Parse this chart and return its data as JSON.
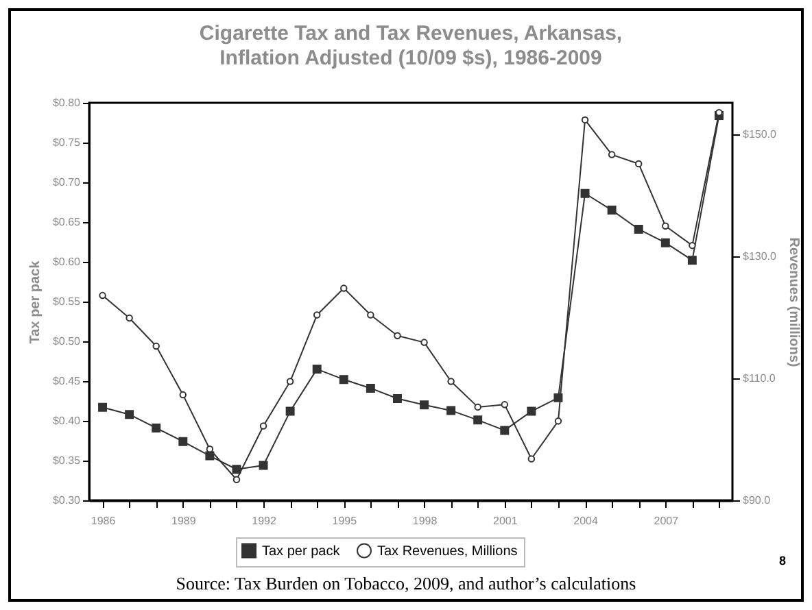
{
  "chart_data": {
    "type": "line",
    "title": "Cigarette Tax and Tax Revenues, Arkansas, Inflation Adjusted (10/09 $s), 1986-2009",
    "ylabel": "Tax per pack",
    "y2label": "Revenues (millions)",
    "categories": [
      "1986",
      null,
      null,
      "1989",
      null,
      null,
      "1992",
      null,
      null,
      "1995",
      null,
      null,
      "1998",
      null,
      null,
      "2001",
      null,
      null,
      "2004",
      null,
      null,
      "2007",
      null,
      null
    ],
    "series": [
      {
        "name": "Tax per pack",
        "color": "#333333",
        "marker": "square",
        "values": [
          0.417,
          0.408,
          0.391,
          0.374,
          0.356,
          0.339,
          0.344,
          0.412,
          0.465,
          0.452,
          0.441,
          0.428,
          0.42,
          0.413,
          0.401,
          0.388,
          0.412,
          0.429,
          0.686,
          0.665,
          0.641,
          0.624,
          0.602,
          0.784
        ]
      },
      {
        "name": "Tax Revenues, Millions",
        "color": "#333333",
        "marker": "circle",
        "axis": "y2",
        "values": [
          123.6,
          119.9,
          115.3,
          107.3,
          98.4,
          93.4,
          102.2,
          109.5,
          120.4,
          124.8,
          120.4,
          117.0,
          115.9,
          109.5,
          105.3,
          105.7,
          96.8,
          103.0,
          152.4,
          146.7,
          145.2,
          135.0,
          131.8,
          153.6
        ]
      }
    ],
    "ylim": [
      0.3,
      0.8
    ],
    "yticks": [
      {
        "value": 0.3,
        "label": "$0.30"
      },
      {
        "value": 0.35,
        "label": "$0.35"
      },
      {
        "value": 0.4,
        "label": "$0.40"
      },
      {
        "value": 0.45,
        "label": "$0.45"
      },
      {
        "value": 0.5,
        "label": "$0.50"
      },
      {
        "value": 0.55,
        "label": "$0.55"
      },
      {
        "value": 0.6,
        "label": "$0.60"
      },
      {
        "value": 0.65,
        "label": "$0.65"
      },
      {
        "value": 0.7,
        "label": "$0.70"
      },
      {
        "value": 0.75,
        "label": "$0.75"
      },
      {
        "value": 0.8,
        "label": "$0.80"
      }
    ],
    "y2lim": [
      90,
      155.2
    ],
    "y2ticks": [
      {
        "value": 90,
        "label": "$90.0"
      },
      {
        "value": 110,
        "label": "$110.0"
      },
      {
        "value": 130,
        "label": "$130.0"
      },
      {
        "value": 150,
        "label": "$150.0"
      }
    ],
    "legend": "bottom",
    "grid": false,
    "annotations": [
      "Source: Tax Burden on Tobacco, 2009, and author’s calculations",
      "8"
    ]
  }
}
